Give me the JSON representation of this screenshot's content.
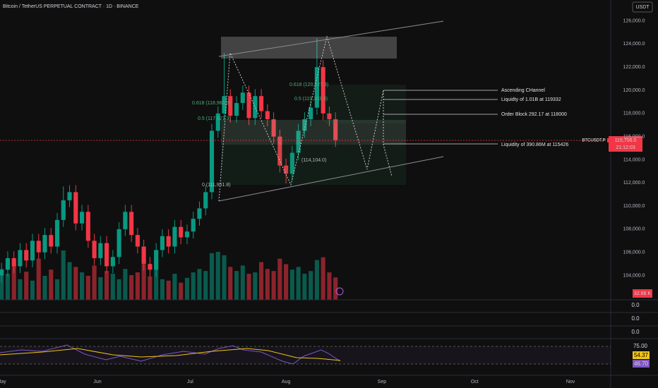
{
  "chart_data": {
    "type": "candlestick",
    "title": "Bitcoin / TetherUS PERPETUAL CONTRACT · 1D · BINANCE",
    "currency": "USDT",
    "symbol": "BTCUSDT.P",
    "last_price_label": "115,706.0",
    "countdown": "21:12:03",
    "volume_label": "32.66 K",
    "up_color": "#089981",
    "down_color": "#f23645",
    "x": [
      0,
      2,
      4,
      6,
      8,
      10,
      12,
      14,
      16,
      18,
      20,
      22,
      24,
      26,
      28,
      30,
      32,
      34,
      36,
      38,
      40,
      42,
      44,
      46,
      48,
      50,
      52,
      54,
      56,
      58,
      60,
      62,
      64,
      66,
      68,
      70,
      72,
      74,
      76,
      78,
      80,
      82,
      84,
      86,
      88,
      90,
      92,
      94,
      96,
      98,
      100,
      102,
      104,
      106,
      108
    ],
    "open": [
      104000,
      104500,
      105500,
      104800,
      106200,
      105300,
      107000,
      106000,
      107500,
      106500,
      108800,
      110500,
      111200,
      108500,
      109500,
      107000,
      105500,
      106800,
      104800,
      105600,
      108000,
      109500,
      107500,
      106500,
      105000,
      104500,
      106200,
      107400,
      106500,
      108200,
      107300,
      107800,
      108900,
      109800,
      111200,
      116500,
      118000,
      119500,
      117800,
      118900,
      119800,
      117600,
      119500,
      118200,
      117500,
      116000,
      113500,
      112800,
      114600,
      116500,
      117500,
      118500,
      122000,
      118000,
      117500
    ],
    "high": [
      105100,
      106100,
      106100,
      106800,
      106800,
      107600,
      107600,
      108100,
      108100,
      109400,
      111700,
      111800,
      111800,
      110100,
      110100,
      107600,
      107400,
      107400,
      106200,
      108600,
      110100,
      110100,
      108100,
      107100,
      105600,
      106800,
      108000,
      108000,
      108800,
      108800,
      108400,
      109500,
      110400,
      111800,
      117100,
      118600,
      123200,
      120100,
      119500,
      120400,
      120400,
      120100,
      120100,
      118800,
      118100,
      116600,
      114100,
      115200,
      117100,
      118100,
      119100,
      124500,
      122600,
      118600,
      118100
    ],
    "low": [
      103400,
      103900,
      104200,
      104200,
      104700,
      104700,
      105400,
      105400,
      105900,
      105900,
      108200,
      109900,
      107900,
      107900,
      106400,
      104900,
      104900,
      104200,
      104200,
      105000,
      107400,
      106900,
      105900,
      104400,
      103900,
      103900,
      105600,
      105900,
      105900,
      106700,
      106700,
      107200,
      108300,
      109200,
      110600,
      115900,
      117400,
      117200,
      117200,
      118300,
      117000,
      117000,
      117600,
      116900,
      115400,
      112900,
      111950,
      112200,
      114000,
      115900,
      116900,
      117900,
      117400,
      116900,
      115100
    ],
    "close": [
      104500,
      105500,
      104800,
      106200,
      105300,
      107000,
      106000,
      107500,
      106500,
      108800,
      110500,
      111200,
      108500,
      109500,
      107000,
      105500,
      106800,
      104800,
      105600,
      108000,
      109500,
      107500,
      106500,
      105000,
      104500,
      106200,
      107400,
      106500,
      108200,
      107300,
      107800,
      108900,
      109800,
      111200,
      116500,
      118000,
      119500,
      117800,
      118900,
      119800,
      117600,
      119500,
      118200,
      117500,
      116000,
      113500,
      112800,
      114600,
      116500,
      117500,
      118500,
      122000,
      118000,
      117500,
      115706
    ],
    "volume": [
      45,
      38,
      52,
      30,
      41,
      28,
      60,
      35,
      44,
      30,
      72,
      55,
      48,
      40,
      35,
      50,
      33,
      42,
      38,
      30,
      45,
      36,
      40,
      52,
      34,
      55,
      30,
      28,
      38,
      25,
      32,
      40,
      45,
      42,
      68,
      70,
      65,
      48,
      42,
      50,
      38,
      40,
      55,
      45,
      42,
      60,
      52,
      44,
      48,
      38,
      42,
      58,
      62,
      40,
      32.66
    ],
    "xlim": [
      -0.5,
      197
    ],
    "xticks": [
      {
        "value": 0,
        "label": "May"
      },
      {
        "value": 31,
        "label": "Jun"
      },
      {
        "value": 61,
        "label": "Jul"
      },
      {
        "value": 92,
        "label": "Aug"
      },
      {
        "value": 123,
        "label": "Sep"
      },
      {
        "value": 153,
        "label": "Oct"
      },
      {
        "value": 184,
        "label": "Nov"
      }
    ],
    "ylim": [
      101900,
      127800
    ],
    "yticks": [
      {
        "value": 104000,
        "label": "104,000.0"
      },
      {
        "value": 106000,
        "label": "106,000.0"
      },
      {
        "value": 108000,
        "label": "108,000.0"
      },
      {
        "value": 110000,
        "label": "110,000.0"
      },
      {
        "value": 112000,
        "label": "112,000.0"
      },
      {
        "value": 114000,
        "label": "114,000.0"
      },
      {
        "value": 116000,
        "label": "116,000.0"
      },
      {
        "value": 118000,
        "label": "118,000.0"
      },
      {
        "value": 120000,
        "label": "120,000.0"
      },
      {
        "value": 122000,
        "label": "122,000.0"
      },
      {
        "value": 124000,
        "label": "124,000.0"
      },
      {
        "value": 126000,
        "label": "126,000.0"
      }
    ],
    "annotations": [
      "Ascending CHannel",
      "Liquidty of  1.01B at 119332",
      "Order Block 292.17 at 118000",
      "Liquidity of 390.86M at 115426"
    ],
    "fib_labels": [
      "0.618 (118,960.3)",
      "0.5 (117,627.3)",
      "0 (111,951.8)",
      "(114,104.0)",
      "0.618 (120,527.3)",
      "0.5 (119,303.3)"
    ],
    "indicator_values": [
      "0.0",
      "0.0",
      "0.0"
    ],
    "rsi_labels": [
      "75.00",
      "54.37",
      "46.70"
    ]
  }
}
